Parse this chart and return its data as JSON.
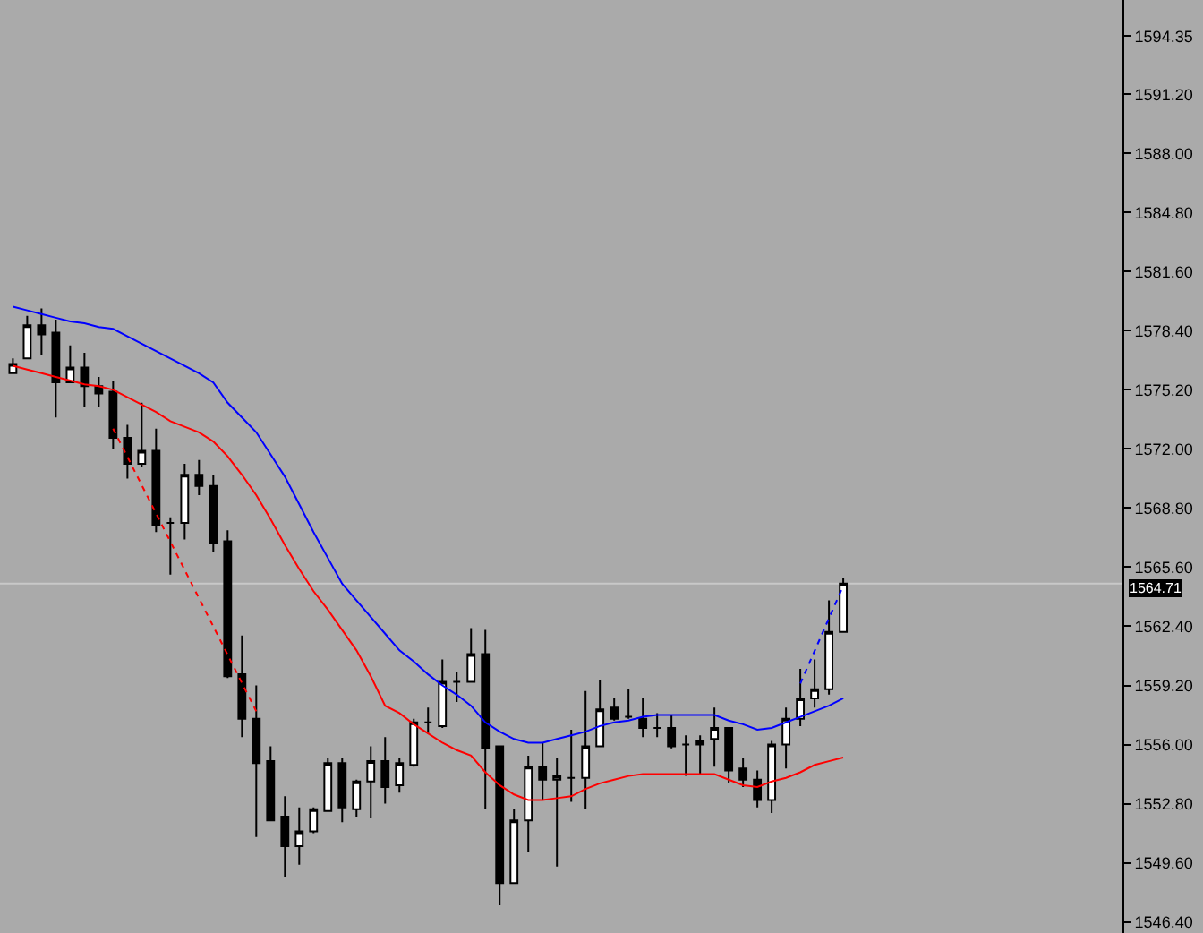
{
  "chart_data": {
    "type": "candlestick",
    "categories": [
      null,
      null,
      null,
      null,
      null,
      null,
      null,
      null,
      null,
      null,
      null,
      null,
      null,
      null,
      null,
      null,
      null,
      null,
      null,
      null,
      null,
      null,
      null,
      null,
      null,
      null,
      null,
      null,
      null,
      null,
      null,
      null,
      null,
      null,
      null,
      null,
      null,
      null,
      null,
      null,
      null,
      null,
      null,
      null,
      null,
      null,
      null,
      null,
      null,
      null,
      null,
      null,
      null,
      null,
      null,
      null,
      null,
      null,
      null
    ],
    "ohlc": [
      [
        1576.1,
        1576.9,
        1576.1,
        1576.6
      ],
      [
        1576.9,
        1579.2,
        1576.9,
        1578.7
      ],
      [
        1578.7,
        1579.6,
        1577.1,
        1578.2
      ],
      [
        1578.3,
        1579.0,
        1573.7,
        1575.6
      ],
      [
        1575.6,
        1577.6,
        1575.6,
        1576.4
      ],
      [
        1576.4,
        1577.2,
        1574.3,
        1575.4
      ],
      [
        1575.4,
        1575.9,
        1574.3,
        1575.0
      ],
      [
        1575.1,
        1575.7,
        1572.0,
        1572.6
      ],
      [
        1572.6,
        1573.3,
        1570.4,
        1571.2
      ],
      [
        1571.2,
        1574.5,
        1571.0,
        1571.9
      ],
      [
        1571.9,
        1573.1,
        1567.5,
        1567.9
      ],
      [
        1568.0,
        1568.3,
        1565.2,
        1568.0
      ],
      [
        1568.0,
        1571.2,
        1567.1,
        1570.6
      ],
      [
        1570.6,
        1571.4,
        1569.5,
        1570.0
      ],
      [
        1570.0,
        1570.6,
        1566.4,
        1566.9
      ],
      [
        1567.0,
        1567.6,
        1559.6,
        1559.7
      ],
      [
        1559.8,
        1561.9,
        1556.4,
        1557.4
      ],
      [
        1557.4,
        1559.2,
        1551.0,
        1555.0
      ],
      [
        1555.1,
        1555.9,
        1551.9,
        1551.9
      ],
      [
        1552.1,
        1553.2,
        1548.8,
        1550.5
      ],
      [
        1550.5,
        1552.6,
        1549.5,
        1551.3
      ],
      [
        1551.3,
        1552.6,
        1551.2,
        1552.5
      ],
      [
        1552.4,
        1555.3,
        1552.4,
        1555.0
      ],
      [
        1555.0,
        1555.3,
        1551.8,
        1552.6
      ],
      [
        1552.5,
        1554.1,
        1552.1,
        1554.0
      ],
      [
        1554.0,
        1555.9,
        1552.0,
        1555.1
      ],
      [
        1555.1,
        1556.4,
        1552.8,
        1553.7
      ],
      [
        1553.8,
        1555.3,
        1553.4,
        1555.0
      ],
      [
        1554.9,
        1557.4,
        1554.8,
        1557.2
      ],
      [
        1557.2,
        1558.0,
        1556.6,
        1557.2
      ],
      [
        1557.0,
        1560.6,
        1556.9,
        1559.4
      ],
      [
        1559.4,
        1559.9,
        1558.3,
        1559.4
      ],
      [
        1559.4,
        1562.3,
        1559.4,
        1560.9
      ],
      [
        1560.9,
        1562.2,
        1552.5,
        1555.8
      ],
      [
        1555.9,
        1555.9,
        1547.3,
        1548.5
      ],
      [
        1548.5,
        1552.5,
        1548.5,
        1551.9
      ],
      [
        1551.9,
        1555.4,
        1550.2,
        1554.8
      ],
      [
        1554.8,
        1556.1,
        1553.0,
        1554.1
      ],
      [
        1554.1,
        1555.3,
        1549.4,
        1554.3
      ],
      [
        1554.2,
        1556.8,
        1552.9,
        1554.2
      ],
      [
        1554.2,
        1558.9,
        1552.5,
        1555.9
      ],
      [
        1555.9,
        1559.5,
        1555.9,
        1557.9
      ],
      [
        1558.0,
        1558.5,
        1557.3,
        1557.4
      ],
      [
        1557.5,
        1559.0,
        1557.4,
        1557.5
      ],
      [
        1557.4,
        1558.5,
        1556.4,
        1556.9
      ],
      [
        1556.9,
        1557.7,
        1556.4,
        1556.9
      ],
      [
        1556.9,
        1557.6,
        1555.8,
        1555.9
      ],
      [
        1556.0,
        1556.5,
        1554.3,
        1556.0
      ],
      [
        1556.0,
        1556.5,
        1554.4,
        1556.2
      ],
      [
        1556.3,
        1558.0,
        1554.8,
        1556.9
      ],
      [
        1556.9,
        1556.9,
        1553.9,
        1554.6
      ],
      [
        1554.7,
        1555.3,
        1553.7,
        1554.1
      ],
      [
        1554.1,
        1554.6,
        1552.6,
        1553.0
      ],
      [
        1553.0,
        1556.2,
        1552.3,
        1556.0
      ],
      [
        1556.0,
        1558.0,
        1554.7,
        1557.4
      ],
      [
        1557.4,
        1560.1,
        1557.0,
        1558.5
      ],
      [
        1558.5,
        1560.6,
        1558.0,
        1559.0
      ],
      [
        1559.0,
        1563.8,
        1558.7,
        1562.1
      ],
      [
        1562.1,
        1565.0,
        1562.1,
        1564.71
      ]
    ],
    "series": [
      {
        "type": "line",
        "color": "#0000ff",
        "line_style": "solid",
        "values": [
          1579.7,
          1579.5,
          1579.3,
          1579.1,
          1578.9,
          1578.8,
          1578.6,
          1578.5,
          1578.1,
          1577.7,
          1577.3,
          1576.9,
          1576.5,
          1576.1,
          1575.6,
          1574.5,
          1573.7,
          1572.9,
          1571.7,
          1570.5,
          1569.0,
          1567.5,
          1566.1,
          1564.7,
          1563.8,
          1562.9,
          1562.0,
          1561.1,
          1560.5,
          1559.8,
          1559.2,
          1558.7,
          1558.1,
          1557.2,
          1556.7,
          1556.3,
          1556.1,
          1556.1,
          1556.3,
          1556.5,
          1556.7,
          1557.0,
          1557.2,
          1557.3,
          1557.5,
          1557.6,
          1557.6,
          1557.6,
          1557.6,
          1557.6,
          1557.3,
          1557.1,
          1556.8,
          1556.9,
          1557.2,
          1557.5,
          1557.8,
          1558.1,
          1558.5
        ]
      },
      {
        "type": "line",
        "color": "#ff0000",
        "line_style": "solid",
        "values": [
          1576.5,
          1576.3,
          1576.1,
          1575.9,
          1575.7,
          1575.5,
          1575.4,
          1575.2,
          1574.8,
          1574.4,
          1574.0,
          1573.5,
          1573.2,
          1572.9,
          1572.4,
          1571.6,
          1570.6,
          1569.5,
          1568.2,
          1566.8,
          1565.5,
          1564.3,
          1563.3,
          1562.2,
          1561.1,
          1559.7,
          1558.1,
          1557.7,
          1557.1,
          1556.6,
          1556.1,
          1555.7,
          1555.4,
          1554.5,
          1553.8,
          1553.3,
          1553.0,
          1553.0,
          1553.1,
          1553.2,
          1553.6,
          1553.9,
          1554.1,
          1554.3,
          1554.4,
          1554.4,
          1554.4,
          1554.4,
          1554.4,
          1554.4,
          1554.1,
          1553.8,
          1553.7,
          1554.0,
          1554.2,
          1554.5,
          1554.9,
          1555.1,
          1555.3
        ]
      },
      {
        "type": "line",
        "color": "#ff0000",
        "line_style": "dotted",
        "values": [
          null,
          null,
          null,
          null,
          null,
          null,
          null,
          1573.1,
          null,
          null,
          null,
          null,
          null,
          null,
          null,
          null,
          null,
          1557.8,
          null,
          null,
          null,
          null,
          null,
          null,
          null,
          null,
          null,
          null,
          null,
          null,
          null,
          null,
          null,
          null,
          null,
          null,
          null,
          null,
          null,
          null,
          null,
          null,
          null,
          null,
          null,
          null,
          null,
          null,
          null,
          null,
          null,
          null,
          null,
          null,
          null,
          null,
          null,
          null,
          null
        ]
      },
      {
        "type": "line",
        "color": "#0000ff",
        "line_style": "dotted",
        "values": [
          null,
          null,
          null,
          null,
          null,
          null,
          null,
          null,
          null,
          null,
          null,
          null,
          null,
          null,
          null,
          null,
          null,
          null,
          null,
          null,
          null,
          null,
          null,
          null,
          null,
          null,
          null,
          null,
          null,
          null,
          null,
          null,
          null,
          null,
          null,
          null,
          null,
          null,
          null,
          null,
          null,
          null,
          null,
          null,
          null,
          null,
          null,
          null,
          null,
          null,
          null,
          null,
          null,
          null,
          null,
          1559.3,
          null,
          null,
          1564.6
        ]
      }
    ],
    "ylim": [
      1545.8,
      1596.3
    ],
    "yticks": [
      {
        "value": 1594.35,
        "label": "1594.35"
      },
      {
        "value": 1591.2,
        "label": "1591.20"
      },
      {
        "value": 1588.0,
        "label": "1588.00"
      },
      {
        "value": 1584.8,
        "label": "1584.80"
      },
      {
        "value": 1581.6,
        "label": "1581.60"
      },
      {
        "value": 1578.4,
        "label": "1578.40"
      },
      {
        "value": 1575.2,
        "label": "1575.20"
      },
      {
        "value": 1572.0,
        "label": "1572.00"
      },
      {
        "value": 1568.8,
        "label": "1568.80"
      },
      {
        "value": 1565.6,
        "label": "1565.60"
      },
      {
        "value": 1562.4,
        "label": "1562.40"
      },
      {
        "value": 1559.2,
        "label": "1559.20"
      },
      {
        "value": 1556.0,
        "label": "1556.00"
      },
      {
        "value": 1552.8,
        "label": "1552.80"
      },
      {
        "value": 1549.6,
        "label": "1549.60"
      },
      {
        "value": 1546.4,
        "label": "1546.40"
      }
    ],
    "ref_lines": [
      {
        "axis": "y",
        "value": 1564.71,
        "label": "1564.71",
        "color": "#c8c8c8"
      }
    ],
    "grid": false
  }
}
